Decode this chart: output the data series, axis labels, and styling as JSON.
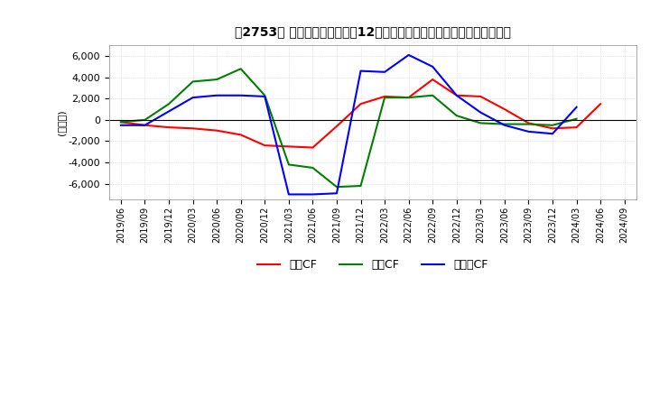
{
  "title": "　2753、 キャッシュフローの12か月移動合計の対前年同期増減額の推移",
  "ylabel": "(百万円)",
  "ylim": [
    -7500,
    7000
  ],
  "yticks": [
    -6000,
    -4000,
    -2000,
    0,
    2000,
    4000,
    6000
  ],
  "x_labels": [
    "2019/06",
    "2019/09",
    "2019/12",
    "2020/03",
    "2020/06",
    "2020/09",
    "2020/12",
    "2021/03",
    "2021/06",
    "2021/09",
    "2021/12",
    "2022/03",
    "2022/06",
    "2022/09",
    "2022/12",
    "2023/03",
    "2023/06",
    "2023/09",
    "2023/12",
    "2024/03",
    "2024/06",
    "2024/09"
  ],
  "operating_cf": [
    -200,
    -500,
    -700,
    -800,
    -1000,
    -1400,
    -2400,
    -2500,
    -2600,
    -600,
    1500,
    2200,
    2100,
    3800,
    2300,
    2200,
    1000,
    -300,
    -800,
    -700,
    1500,
    null
  ],
  "investing_cf": [
    -200,
    0,
    1500,
    3600,
    3800,
    4800,
    2300,
    -4200,
    -4500,
    -6300,
    -6200,
    2100,
    2100,
    2300,
    400,
    -300,
    -400,
    -400,
    -500,
    100,
    null,
    null
  ],
  "free_cf": [
    -500,
    -500,
    800,
    2100,
    2300,
    2300,
    2200,
    -7000,
    -7000,
    -6900,
    4600,
    4500,
    6100,
    5000,
    2300,
    700,
    -500,
    -1100,
    -1300,
    1200,
    null,
    null
  ],
  "operating_color": "#ff0000",
  "investing_color": "#008000",
  "free_color": "#0000ff",
  "bg_color": "#ffffff",
  "grid_color": "#cccccc",
  "legend_labels": [
    "営業CF",
    "投資CF",
    "フリーCF"
  ]
}
